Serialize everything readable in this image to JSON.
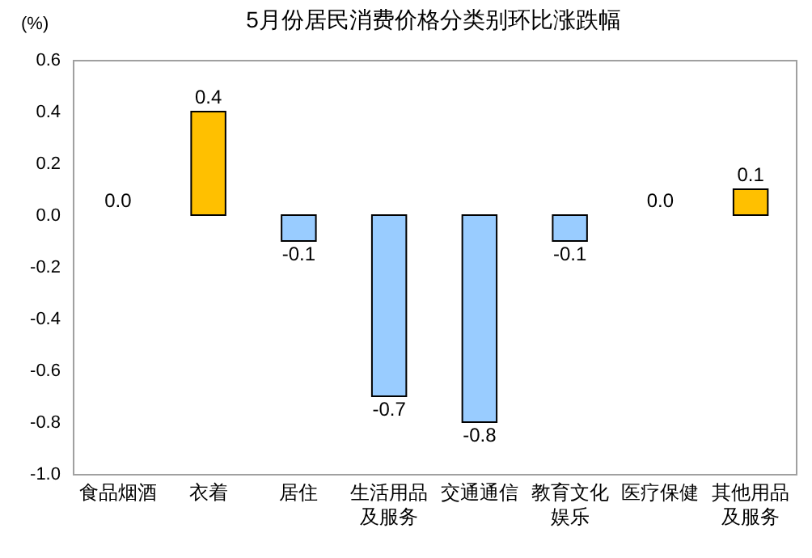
{
  "chart_data": {
    "type": "bar",
    "title": "5月份居民消费价格分类别环比涨跌幅",
    "ylabel": "(%)",
    "categories": [
      "食品烟酒",
      "衣着",
      "居住",
      "生活用品及服务",
      "交通通信",
      "教育文化娱乐",
      "医疗保健",
      "其他用品及服务"
    ],
    "values": [
      0.0,
      0.4,
      -0.1,
      -0.7,
      -0.8,
      -0.1,
      0.0,
      0.1
    ],
    "colors": [
      "#ffc000",
      "#ffc000",
      "#99ccff",
      "#99ccff",
      "#99ccff",
      "#99ccff",
      "#ffc000",
      "#ffc000"
    ],
    "value_labels": [
      "0.0",
      "0.4",
      "-0.1",
      "-0.7",
      "-0.8",
      "-0.1",
      "0.0",
      "0.1"
    ],
    "ylim": [
      -1.0,
      0.6
    ],
    "yticks": [
      {
        "value": -1.0,
        "label": "-1.0"
      },
      -0.8,
      -0.6,
      -0.4,
      -0.2,
      {
        "value": 0,
        "label": "0.0"
      },
      0.2,
      0.4,
      0.6
    ],
    "grid": false
  }
}
